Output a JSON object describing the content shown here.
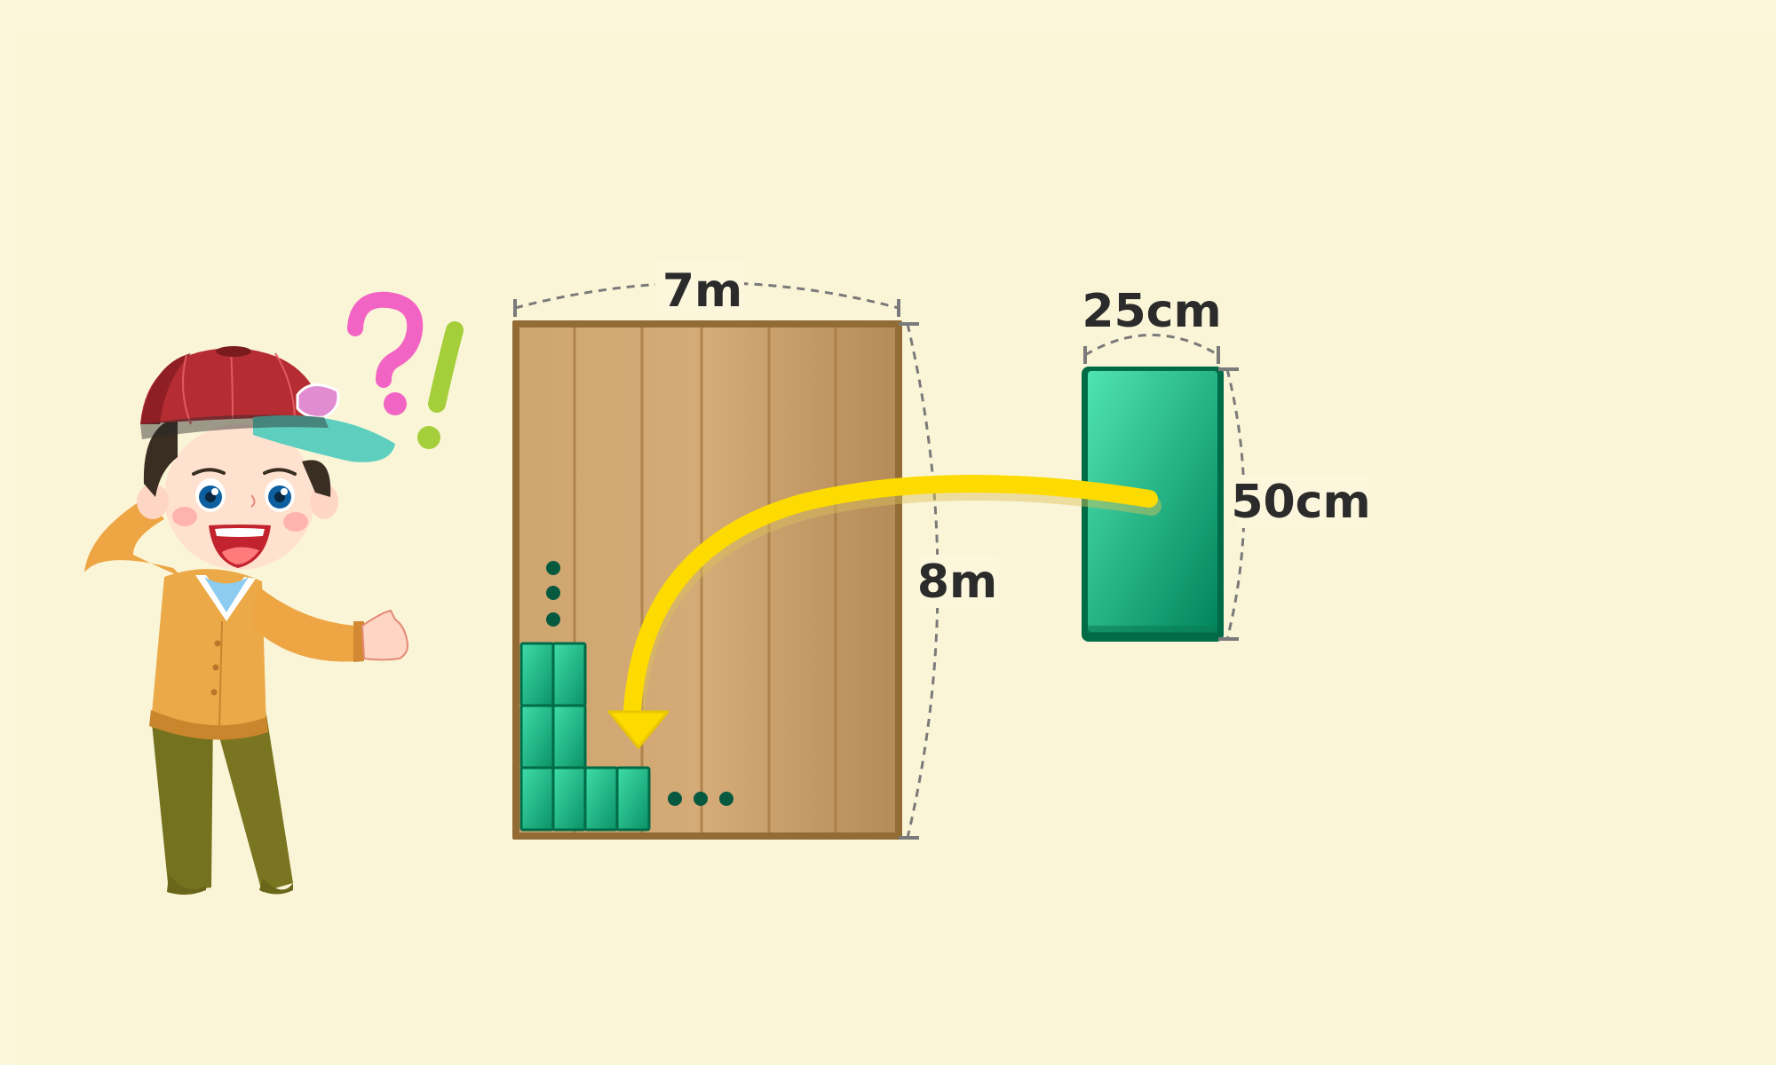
{
  "floor": {
    "width_label": "7m",
    "height_label": "8m"
  },
  "tile": {
    "width_label": "25cm",
    "height_label": "50cm"
  },
  "colors": {
    "background": "#fcf6dc",
    "wood": "#d2a872",
    "wood_frame": "#936c35",
    "tile": "#1fbf8e",
    "tile_dark": "#006b47",
    "arrow": "#fddb00",
    "dim_line": "#7a7a7a",
    "dot": "#06593f"
  },
  "icons": {
    "question": "question-mark-icon",
    "exclamation": "exclamation-mark-icon"
  }
}
